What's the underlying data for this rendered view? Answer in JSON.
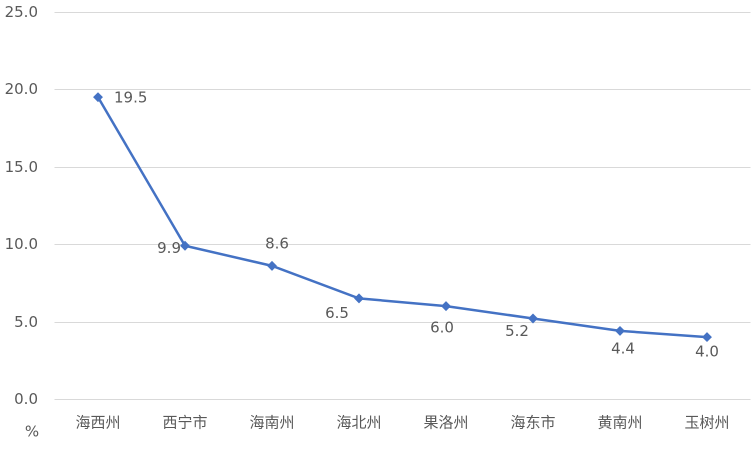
{
  "chart_data": {
    "type": "line",
    "y_label": "%",
    "categories": [
      "海西州",
      "西宁市",
      "海南州",
      "海北州",
      "果洛州",
      "海东市",
      "黄南州",
      "玉树州"
    ],
    "series": [
      {
        "name": "",
        "color": "#4472c4",
        "values": [
          19.5,
          9.9,
          8.6,
          6.5,
          6.0,
          5.2,
          4.4,
          4.0
        ],
        "value_labels": [
          "19.5",
          "9.9",
          "8.6",
          "6.5",
          "6.0",
          "5.2",
          "4.4",
          "4.0"
        ]
      }
    ],
    "ylim": [
      0,
      25
    ],
    "yticks": [
      {
        "value": 0,
        "label": "0.0"
      },
      {
        "value": 5,
        "label": "5.0"
      },
      {
        "value": 10,
        "label": "10.0"
      },
      {
        "value": 15,
        "label": "15.0"
      },
      {
        "value": 20,
        "label": "20.0"
      },
      {
        "value": 25,
        "label": "25.0"
      }
    ],
    "grid": true
  }
}
